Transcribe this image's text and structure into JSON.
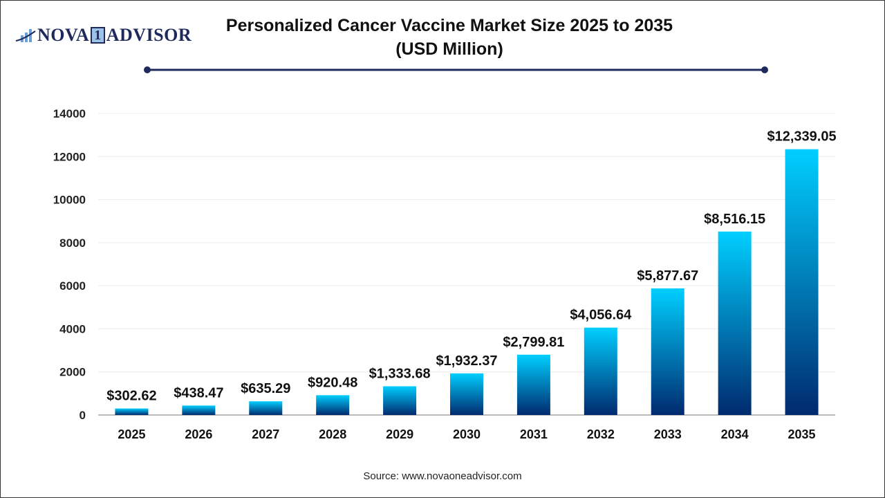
{
  "logo": {
    "text_left": "NOVA",
    "text_one": "1",
    "text_right": "ADVISOR"
  },
  "chart_data": {
    "type": "bar",
    "title": "Personalized Cancer Vaccine Market Size 2025 to 2035",
    "subtitle": "(USD Million)",
    "categories": [
      "2025",
      "2026",
      "2027",
      "2028",
      "2029",
      "2030",
      "2031",
      "2032",
      "2033",
      "2034",
      "2035"
    ],
    "values": [
      302.62,
      438.47,
      635.29,
      920.48,
      1333.68,
      1932.37,
      2799.81,
      4056.64,
      5877.67,
      8516.15,
      12339.05
    ],
    "data_labels": [
      "$302.62",
      "$438.47",
      "$635.29",
      "$920.48",
      "$1,333.68",
      "$1,932.37",
      "$2,799.81",
      "$4,056.64",
      "$5,877.67",
      "$8,516.15",
      "$12,339.05"
    ],
    "yticks": [
      0,
      2000,
      4000,
      6000,
      8000,
      10000,
      12000,
      14000
    ],
    "ylim": [
      0,
      14000
    ],
    "grid": true,
    "colors": {
      "bar_top": "#00cfff",
      "bar_bottom": "#002a6e",
      "title_rule": "#1f2a5c"
    }
  },
  "source": "Source: www.novaoneadvisor.com"
}
